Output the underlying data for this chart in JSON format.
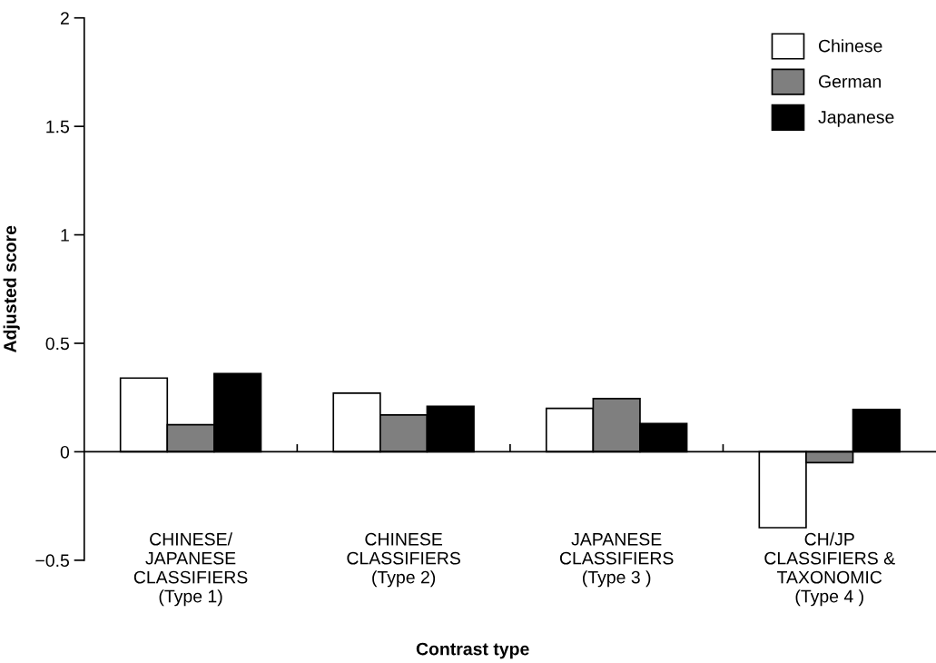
{
  "chart_data": {
    "type": "bar",
    "xlabel": "Contrast type",
    "ylabel": "Adjusted score",
    "categories": [
      "CHINESE/\nJAPANESE\nCLASSIFIERS\n(Type 1)",
      "CHINESE\nCLASSIFIERS\n(Type 2)",
      "JAPANESE\nCLASSIFIERS\n(Type 3 )",
      "CH/JP\nCLASSIFIERS &\nTAXONOMIC\n(Type 4 )"
    ],
    "series": [
      {
        "name": "Chinese",
        "color": "#ffffff",
        "values": [
          0.34,
          0.27,
          0.2,
          -0.35
        ]
      },
      {
        "name": "German",
        "color": "#7f7f7f",
        "values": [
          0.125,
          0.17,
          0.245,
          -0.05
        ]
      },
      {
        "name": "Japanese",
        "color": "#000000",
        "values": [
          0.36,
          0.21,
          0.13,
          0.195
        ]
      }
    ],
    "ylim": [
      -0.5,
      2
    ],
    "yticks": [
      -0.5,
      0,
      0.5,
      1,
      1.5,
      2
    ],
    "legend": "top right"
  }
}
